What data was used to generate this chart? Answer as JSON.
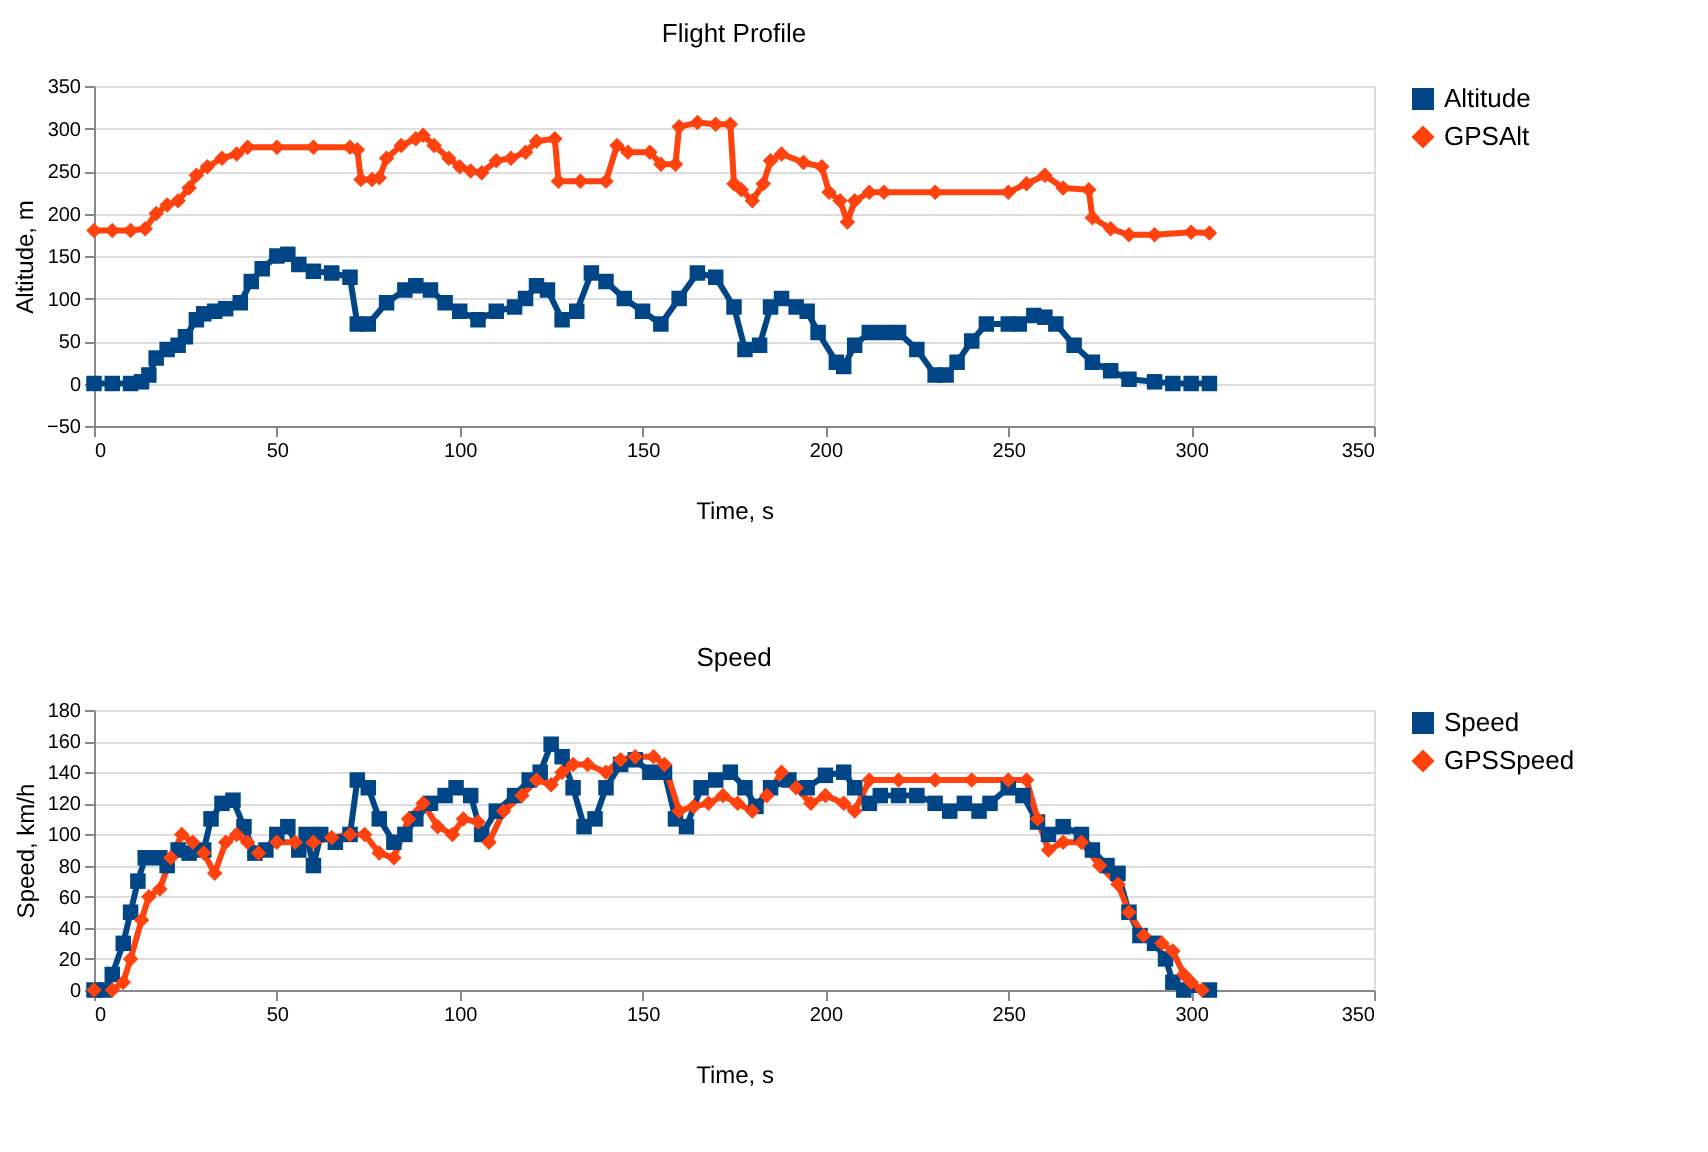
{
  "chart_data": [
    {
      "type": "line",
      "title": "Flight Profile",
      "xlabel": "Time, s",
      "ylabel": "Altitude, m",
      "xlim": [
        0,
        350
      ],
      "xticks": [
        0,
        50,
        100,
        150,
        200,
        250,
        300,
        350
      ],
      "ylim": [
        -50,
        350
      ],
      "yticks": [
        -50,
        0,
        50,
        100,
        150,
        200,
        250,
        300,
        350
      ],
      "grid": "y",
      "legend": "right",
      "series": [
        {
          "name": "Altitude",
          "color": "#004586",
          "marker": "square",
          "x": [
            0,
            5,
            10,
            13,
            15,
            17,
            20,
            23,
            25,
            28,
            30,
            33,
            36,
            40,
            43,
            46,
            50,
            53,
            56,
            60,
            65,
            70,
            72,
            75,
            80,
            85,
            88,
            92,
            96,
            100,
            105,
            110,
            115,
            118,
            121,
            124,
            128,
            132,
            136,
            140,
            145,
            150,
            155,
            160,
            165,
            170,
            175,
            178,
            182,
            185,
            188,
            192,
            195,
            198,
            203,
            205,
            208,
            212,
            216,
            220,
            225,
            230,
            233,
            236,
            240,
            244,
            250,
            253,
            257,
            260,
            263,
            268,
            273,
            278,
            283,
            290,
            295,
            300,
            305
          ],
          "values": [
            0,
            0,
            0,
            2,
            10,
            30,
            40,
            45,
            55,
            75,
            82,
            85,
            88,
            95,
            120,
            135,
            150,
            152,
            140,
            132,
            130,
            125,
            70,
            70,
            95,
            110,
            115,
            110,
            95,
            85,
            75,
            85,
            90,
            100,
            115,
            110,
            75,
            85,
            130,
            120,
            100,
            85,
            70,
            100,
            130,
            125,
            90,
            40,
            45,
            90,
            100,
            90,
            85,
            60,
            25,
            20,
            45,
            60,
            60,
            60,
            40,
            10,
            10,
            25,
            50,
            70,
            70,
            70,
            80,
            78,
            70,
            45,
            25,
            15,
            5,
            2,
            0,
            0,
            0
          ]
        },
        {
          "name": "GPSAlt",
          "color": "#ff420e",
          "marker": "diamond",
          "x": [
            0,
            5,
            10,
            14,
            17,
            20,
            23,
            26,
            28,
            31,
            35,
            39,
            42,
            50,
            60,
            70,
            72,
            73,
            76,
            78,
            80,
            84,
            88,
            90,
            93,
            97,
            100,
            103,
            106,
            110,
            114,
            118,
            121,
            126,
            127,
            133,
            140,
            143,
            146,
            152,
            155,
            159,
            160,
            165,
            170,
            174,
            175,
            177,
            180,
            183,
            185,
            188,
            194,
            199,
            201,
            204,
            206,
            208,
            212,
            216,
            230,
            250,
            255,
            260,
            265,
            272,
            273,
            278,
            283,
            290,
            300,
            305
          ],
          "values": [
            180,
            180,
            180,
            182,
            200,
            210,
            215,
            230,
            245,
            255,
            265,
            270,
            278,
            278,
            278,
            278,
            275,
            240,
            240,
            242,
            265,
            280,
            288,
            292,
            280,
            265,
            255,
            250,
            248,
            262,
            265,
            272,
            285,
            288,
            238,
            238,
            238,
            280,
            272,
            272,
            258,
            258,
            302,
            307,
            305,
            305,
            235,
            228,
            215,
            235,
            262,
            270,
            260,
            255,
            225,
            215,
            190,
            215,
            225,
            225,
            225,
            225,
            235,
            245,
            230,
            228,
            195,
            182,
            175,
            175,
            178,
            177
          ]
        }
      ]
    },
    {
      "type": "line",
      "title": "Speed",
      "xlabel": "Time, s",
      "ylabel": "Speed, km/h",
      "xlim": [
        0,
        350
      ],
      "xticks": [
        0,
        50,
        100,
        150,
        200,
        250,
        300,
        350
      ],
      "ylim": [
        0,
        180
      ],
      "yticks": [
        0,
        20,
        40,
        60,
        80,
        100,
        120,
        140,
        160,
        180
      ],
      "grid": "y",
      "legend": "right",
      "series": [
        {
          "name": "Speed",
          "color": "#004586",
          "marker": "square",
          "x": [
            0,
            3,
            5,
            8,
            10,
            12,
            14,
            18,
            20,
            23,
            26,
            30,
            32,
            35,
            38,
            41,
            44,
            47,
            50,
            53,
            56,
            58,
            60,
            62,
            66,
            70,
            72,
            75,
            78,
            82,
            85,
            88,
            92,
            96,
            99,
            103,
            106,
            110,
            115,
            119,
            122,
            125,
            128,
            131,
            134,
            137,
            140,
            144,
            148,
            152,
            156,
            159,
            162,
            166,
            170,
            174,
            178,
            181,
            185,
            190,
            195,
            200,
            205,
            208,
            212,
            215,
            220,
            225,
            230,
            234,
            238,
            242,
            245,
            250,
            254,
            258,
            261,
            265,
            270,
            273,
            277,
            280,
            283,
            286,
            290,
            293,
            295,
            298,
            305
          ],
          "values": [
            0,
            0,
            10,
            30,
            50,
            70,
            85,
            85,
            80,
            90,
            88,
            90,
            110,
            120,
            122,
            105,
            88,
            90,
            100,
            105,
            90,
            100,
            80,
            100,
            95,
            100,
            135,
            130,
            110,
            95,
            100,
            110,
            120,
            125,
            130,
            125,
            100,
            115,
            125,
            135,
            140,
            158,
            150,
            130,
            105,
            110,
            130,
            145,
            148,
            140,
            140,
            110,
            105,
            130,
            135,
            140,
            130,
            118,
            130,
            135,
            130,
            138,
            140,
            130,
            120,
            125,
            125,
            125,
            120,
            115,
            120,
            115,
            120,
            130,
            125,
            108,
            100,
            105,
            100,
            90,
            80,
            75,
            50,
            35,
            30,
            20,
            5,
            0,
            0
          ]
        },
        {
          "name": "GPSSpeed",
          "color": "#ff420e",
          "marker": "diamond",
          "x": [
            0,
            5,
            8,
            10,
            13,
            15,
            18,
            21,
            24,
            27,
            30,
            33,
            36,
            39,
            42,
            45,
            50,
            55,
            60,
            65,
            70,
            74,
            78,
            82,
            86,
            90,
            94,
            98,
            101,
            105,
            108,
            112,
            117,
            121,
            125,
            128,
            131,
            135,
            140,
            144,
            148,
            153,
            156,
            160,
            164,
            168,
            172,
            176,
            180,
            184,
            188,
            192,
            196,
            200,
            205,
            208,
            212,
            220,
            230,
            240,
            250,
            255,
            258,
            261,
            265,
            270,
            275,
            280,
            283,
            287,
            292,
            295,
            298,
            300,
            303
          ],
          "values": [
            0,
            0,
            5,
            20,
            45,
            60,
            65,
            85,
            100,
            95,
            88,
            75,
            95,
            100,
            95,
            88,
            95,
            95,
            95,
            98,
            100,
            100,
            88,
            85,
            110,
            120,
            105,
            100,
            110,
            108,
            95,
            115,
            125,
            135,
            132,
            140,
            145,
            145,
            140,
            148,
            150,
            150,
            145,
            115,
            118,
            120,
            125,
            120,
            115,
            125,
            140,
            130,
            120,
            125,
            120,
            115,
            135,
            135,
            135,
            135,
            135,
            135,
            110,
            90,
            95,
            95,
            80,
            68,
            50,
            35,
            30,
            25,
            10,
            5,
            0
          ]
        }
      ]
    }
  ]
}
